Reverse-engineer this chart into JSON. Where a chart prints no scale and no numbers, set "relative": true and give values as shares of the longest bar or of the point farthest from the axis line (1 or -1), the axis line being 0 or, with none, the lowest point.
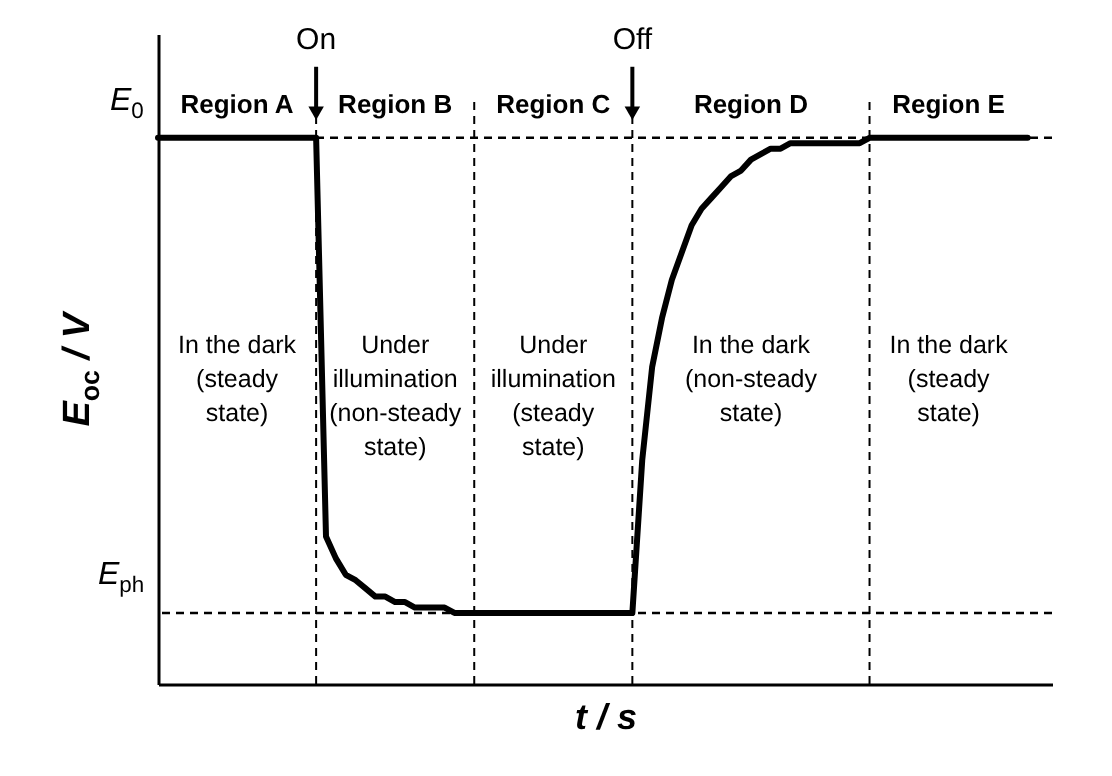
{
  "chart_data": {
    "type": "line",
    "relative": true,
    "xlabel": "t / s",
    "ylabel": "E$_{oc}$ / V",
    "categories": [
      null,
      null,
      null,
      null,
      null,
      null,
      null,
      null,
      null,
      null,
      null,
      null,
      null,
      null,
      null,
      null,
      null,
      null,
      null,
      null,
      null,
      null,
      null,
      null,
      null,
      null,
      null,
      null,
      null,
      null,
      null,
      null,
      null,
      null,
      null,
      null,
      null,
      null,
      null,
      null,
      null,
      null,
      null,
      null,
      null,
      null,
      null,
      null,
      null,
      null,
      null,
      null,
      null,
      null,
      null,
      null,
      null,
      null,
      null,
      null,
      null,
      null,
      null,
      null,
      null,
      null,
      null,
      null,
      null,
      null,
      null,
      null,
      null,
      null,
      null,
      null,
      null,
      null,
      null,
      null,
      null,
      null,
      null,
      null,
      null,
      null,
      null,
      null,
      null
    ],
    "series": [
      {
        "color": "#000000",
        "line_style": "solid",
        "values": [
          1,
          1,
          1,
          1,
          1,
          1,
          1,
          1,
          1,
          1,
          1,
          1,
          1,
          1,
          1,
          1,
          1,
          0.27,
          0.23,
          0.2,
          0.19,
          0.175,
          0.16,
          0.16,
          0.15,
          0.15,
          0.14,
          0.14,
          0.14,
          0.14,
          0.13,
          0.13,
          0.13,
          0.13,
          0.13,
          0.13,
          0.13,
          0.13,
          0.13,
          0.13,
          0.13,
          0.13,
          0.13,
          0.13,
          0.13,
          0.13,
          0.13,
          0.13,
          0.13,
          0.41,
          0.58,
          0.67,
          0.74,
          0.79,
          0.84,
          0.87,
          0.89,
          0.91,
          0.93,
          0.94,
          0.96,
          0.97,
          0.98,
          0.98,
          0.99,
          0.99,
          0.99,
          0.99,
          0.99,
          0.99,
          0.99,
          0.99,
          1,
          1,
          1,
          1,
          1,
          1,
          1,
          1,
          1,
          1,
          1,
          1,
          1,
          1,
          1,
          1,
          1
        ]
      }
    ],
    "ref_lines": [
      {
        "axis": "y",
        "value": 1,
        "label": "E$_{0}$",
        "line_style": "dashed"
      },
      {
        "axis": "y",
        "value": 0.13,
        "label": "E$_{ph}$",
        "line_style": "dashed"
      }
    ],
    "annotations": [
      "On",
      "Off",
      "Region A",
      "Region B",
      "Region C",
      "Region D",
      "Region E",
      "In the dark\n(steady\nstate)",
      "Under\nillumination\n(non-steady\nstate)",
      "Under\nillumination\n(steady\nstate)",
      "In the dark\n(non-steady\nstate)",
      "In the dark\n(steady\nstate)"
    ],
    "grid": "x",
    "marker": "none"
  }
}
